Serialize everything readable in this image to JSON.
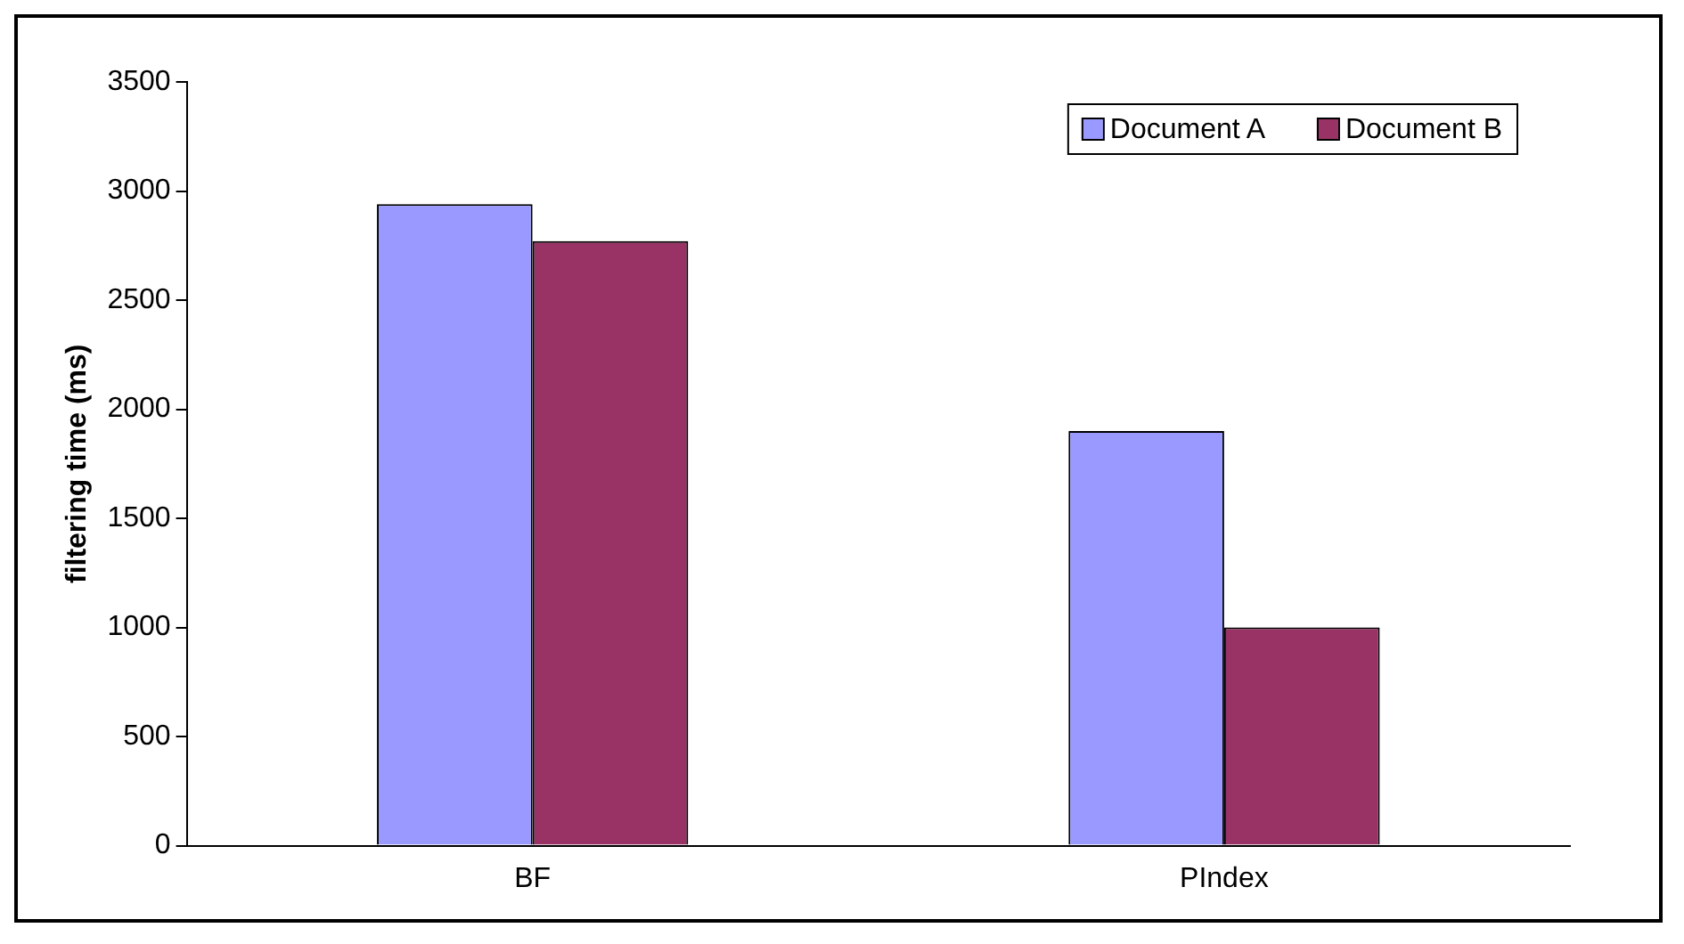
{
  "chart_data": {
    "type": "bar",
    "ylabel": "filtering time (ms)",
    "categories": [
      "BF",
      "PIndex"
    ],
    "series": [
      {
        "name": "Document A",
        "color": "#9999ff",
        "values": [
          2940,
          1900
        ]
      },
      {
        "name": "Document B",
        "color": "#993366",
        "values": [
          2770,
          1000
        ]
      }
    ],
    "ylim": [
      0,
      3500
    ],
    "yticks": [
      0,
      500,
      1000,
      1500,
      2000,
      2500,
      3000,
      3500
    ],
    "grid": false,
    "legend": "top right"
  }
}
